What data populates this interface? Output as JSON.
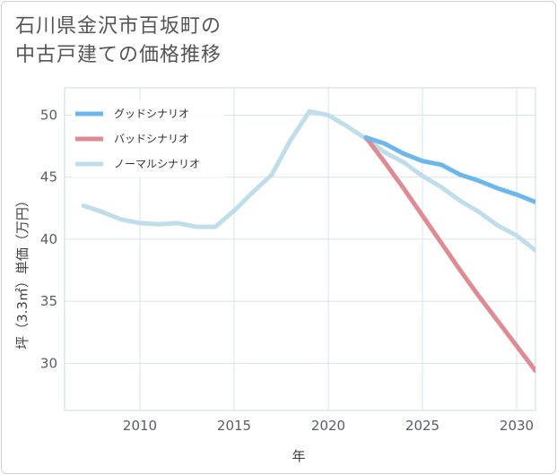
{
  "title": {
    "line1": "石川県金沢市百坂町の",
    "line2": "中古戸建ての価格推移"
  },
  "chart_data": {
    "type": "line",
    "xlabel": "年",
    "ylabel": "坪（3.3㎡）単価（万円）",
    "xlim": [
      2006,
      2031
    ],
    "ylim": [
      26.2,
      52.2
    ],
    "xticks": [
      2010,
      2015,
      2020,
      2025,
      2030
    ],
    "yticks": [
      30,
      35,
      40,
      45,
      50
    ],
    "grid": true,
    "legend_position": "top-left",
    "series": [
      {
        "name": "グッドシナリオ",
        "color": "#6cb8ec",
        "x": [
          2022,
          2023,
          2024,
          2025,
          2026,
          2027,
          2028,
          2029,
          2030,
          2031
        ],
        "y": [
          48.2,
          47.7,
          46.9,
          46.3,
          46.0,
          45.2,
          44.7,
          44.1,
          43.6,
          43.0
        ]
      },
      {
        "name": "バッドシナリオ",
        "color": "#de8c94",
        "x": [
          2022,
          2023,
          2024,
          2025,
          2026,
          2027,
          2028,
          2029,
          2030,
          2031
        ],
        "y": [
          48.2,
          46.2,
          44.1,
          41.9,
          39.7,
          37.5,
          35.4,
          33.4,
          31.4,
          29.4
        ]
      },
      {
        "name": "ノーマルシナリオ",
        "color": "#c0ddea",
        "x": [
          2007,
          2008,
          2009,
          2010,
          2011,
          2012,
          2013,
          2014,
          2015,
          2016,
          2017,
          2018,
          2019,
          2020,
          2021,
          2022,
          2023,
          2024,
          2025,
          2026,
          2027,
          2028,
          2029,
          2030,
          2031
        ],
        "y": [
          42.7,
          42.2,
          41.6,
          41.3,
          41.2,
          41.3,
          41.0,
          41.0,
          42.3,
          43.8,
          45.2,
          48.0,
          50.3,
          50.0,
          49.1,
          48.1,
          47.0,
          46.2,
          45.1,
          44.2,
          43.1,
          42.2,
          41.1,
          40.3,
          39.1
        ]
      }
    ]
  }
}
